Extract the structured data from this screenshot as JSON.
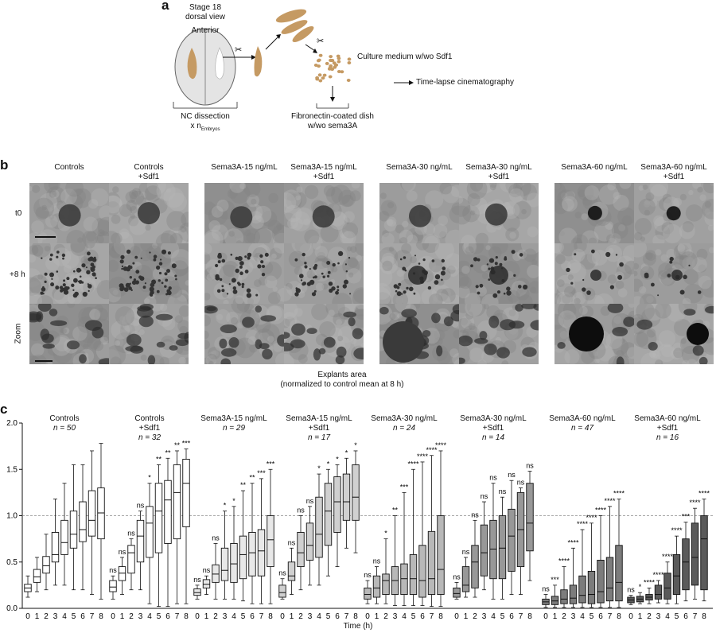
{
  "panel_a": {
    "label": "a",
    "stage": "Stage 18",
    "view": "dorsal view",
    "anterior": "Anterior",
    "culture": "Culture medium w/wo Sdf1",
    "timelapse": "Time-lapse cinematography",
    "nc1": "NC dissection",
    "nc2": "x n",
    "nc_sub": "Embryos",
    "fib1": "Fibronectin-coated dish",
    "fib2": "w/wo sema3A"
  },
  "panel_b": {
    "label": "b",
    "columns": [
      {
        "l1": "Controls",
        "l2": ""
      },
      {
        "l1": "Controls",
        "l2": "+Sdf1"
      },
      {
        "l1": "Sema3A-15 ng/mL",
        "l2": ""
      },
      {
        "l1": "Sema3A-15 ng/mL",
        "l2": "+Sdf1"
      },
      {
        "l1": "Sema3A-30 ng/mL",
        "l2": ""
      },
      {
        "l1": "Sema3A-30 ng/mL",
        "l2": "+Sdf1"
      },
      {
        "l1": "Sema3A-60 ng/mL",
        "l2": ""
      },
      {
        "l1": "Sema3A-60 ng/mL",
        "l2": "+Sdf1"
      }
    ],
    "rows": [
      "t0",
      "+8 h",
      "Zoom"
    ],
    "caption1": "Explants area",
    "caption2": "(normalized to control mean at 8 h)"
  },
  "panel_c": {
    "label": "c",
    "xlabel": "Time (h)",
    "groups": [
      {
        "l1": "Controls",
        "l2": "",
        "n": "n = 50"
      },
      {
        "l1": "Controls",
        "l2": "+Sdf1",
        "n": "n = 32"
      },
      {
        "l1": "Sema3A-15 ng/mL",
        "l2": "",
        "n": "n = 29"
      },
      {
        "l1": "Sema3A-15 ng/mL",
        "l2": "+Sdf1",
        "n": "n = 17"
      },
      {
        "l1": "Sema3A-30 ng/mL",
        "l2": "",
        "n": "n = 24"
      },
      {
        "l1": "Sema3A-30 ng/mL",
        "l2": "+Sdf1",
        "n": "n = 14"
      },
      {
        "l1": "Sema3A-60 ng/mL",
        "l2": "",
        "n": "n = 47"
      },
      {
        "l1": "Sema3A-60 ng/mL",
        "l2": "+Sdf1",
        "n": "n = 16"
      }
    ]
  },
  "chart_data": {
    "type": "box",
    "xlabel": "Time (h)",
    "ylim": [
      0,
      2.0
    ],
    "yticks": [
      "0.0",
      "0.5",
      "1.0",
      "1.5",
      "2.0"
    ],
    "reference_line": 1.0,
    "categories": [
      "0",
      "1",
      "2",
      "3",
      "4",
      "5",
      "6",
      "7",
      "8"
    ],
    "series": [
      {
        "fill": "#ffffff",
        "q1": [
          0.18,
          0.28,
          0.38,
          0.5,
          0.58,
          0.65,
          0.72,
          0.78,
          0.75
        ],
        "median": [
          0.22,
          0.34,
          0.46,
          0.58,
          0.71,
          0.8,
          0.85,
          0.95,
          1.03
        ],
        "q3": [
          0.26,
          0.42,
          0.56,
          0.82,
          0.95,
          1.05,
          1.15,
          1.27,
          1.3
        ],
        "wlo": [
          0.12,
          0.18,
          0.2,
          0.25,
          0.25,
          0.2,
          0.2,
          0.15,
          0.1
        ],
        "whi": [
          0.35,
          0.55,
          0.8,
          1.18,
          1.35,
          1.55,
          1.55,
          1.7,
          1.78
        ],
        "sig": [
          "",
          "",
          "",
          "",
          "",
          "",
          "",
          "",
          ""
        ]
      },
      {
        "fill": "#ffffff",
        "q1": [
          0.18,
          0.3,
          0.38,
          0.5,
          0.55,
          0.6,
          0.7,
          0.75,
          0.88
        ],
        "median": [
          0.23,
          0.38,
          0.6,
          0.78,
          0.92,
          1.05,
          1.17,
          1.25,
          1.35
        ],
        "q3": [
          0.3,
          0.45,
          0.68,
          0.95,
          1.1,
          1.35,
          1.38,
          1.55,
          1.61
        ],
        "wlo": [
          0.1,
          0.15,
          0.2,
          0.2,
          0.05,
          0.02,
          0.02,
          0.05,
          0.05
        ],
        "whi": [
          0.35,
          0.55,
          0.75,
          1.05,
          1.35,
          1.55,
          1.62,
          1.7,
          1.72
        ],
        "sig": [
          "ns",
          "ns",
          "ns",
          "ns",
          "*",
          "**",
          "**",
          "**",
          "***"
        ]
      },
      {
        "fill": "#e8e8e8",
        "q1": [
          0.14,
          0.22,
          0.28,
          0.3,
          0.28,
          0.32,
          0.35,
          0.35,
          0.45
        ],
        "median": [
          0.17,
          0.26,
          0.37,
          0.41,
          0.48,
          0.58,
          0.6,
          0.62,
          0.74
        ],
        "q3": [
          0.21,
          0.31,
          0.47,
          0.65,
          0.7,
          0.78,
          0.82,
          0.85,
          1.0
        ],
        "wlo": [
          0.1,
          0.15,
          0.1,
          0.1,
          0.1,
          0.08,
          0.05,
          0.05,
          0.05
        ],
        "whi": [
          0.25,
          0.35,
          0.7,
          1.05,
          1.1,
          1.27,
          1.35,
          1.4,
          1.5
        ],
        "sig": [
          "ns",
          "ns",
          "ns",
          "*",
          "*",
          "**",
          "**",
          "***",
          "***"
        ]
      },
      {
        "fill": "#d0d0d0",
        "q1": [
          0.12,
          0.3,
          0.45,
          0.52,
          0.55,
          0.68,
          0.82,
          0.95,
          0.95
        ],
        "median": [
          0.17,
          0.35,
          0.6,
          0.68,
          0.8,
          1.05,
          1.15,
          1.15,
          1.2
        ],
        "q3": [
          0.25,
          0.5,
          0.82,
          0.92,
          1.2,
          1.35,
          1.42,
          1.45,
          1.55
        ],
        "wlo": [
          0.1,
          0.15,
          0.2,
          0.25,
          0.25,
          0.35,
          0.45,
          0.65,
          0.6
        ],
        "whi": [
          0.32,
          0.65,
          1.0,
          1.1,
          1.45,
          1.5,
          1.55,
          1.62,
          1.7
        ],
        "sig": [
          "ns",
          "ns",
          "ns",
          "ns",
          "*",
          "*",
          "*",
          "*",
          "*"
        ]
      },
      {
        "fill": "#b8b8b8",
        "q1": [
          0.1,
          0.12,
          0.15,
          0.15,
          0.15,
          0.15,
          0.12,
          0.15,
          0.15
        ],
        "median": [
          0.15,
          0.22,
          0.3,
          0.3,
          0.32,
          0.32,
          0.3,
          0.32,
          0.42
        ],
        "q3": [
          0.22,
          0.35,
          0.37,
          0.45,
          0.48,
          0.58,
          0.68,
          0.83,
          1.0
        ],
        "wlo": [
          0.05,
          0.05,
          0.05,
          0.03,
          0.03,
          0.03,
          0.03,
          0.02,
          0.02
        ],
        "whi": [
          0.3,
          0.45,
          0.75,
          1.0,
          1.25,
          1.5,
          1.58,
          1.65,
          1.7
        ],
        "sig": [
          "ns",
          "ns",
          "*",
          "**",
          "***",
          "****",
          "****",
          "****",
          "****"
        ]
      },
      {
        "fill": "#989898",
        "q1": [
          0.12,
          0.18,
          0.22,
          0.35,
          0.32,
          0.32,
          0.4,
          0.45,
          0.62
        ],
        "median": [
          0.16,
          0.25,
          0.5,
          0.6,
          0.64,
          0.65,
          0.78,
          0.85,
          0.92
        ],
        "q3": [
          0.22,
          0.45,
          0.68,
          0.9,
          0.95,
          1.0,
          1.07,
          1.25,
          1.35
        ],
        "wlo": [
          0.1,
          0.12,
          0.12,
          0.2,
          0.1,
          0.1,
          0.15,
          0.15,
          0.3
        ],
        "whi": [
          0.28,
          0.55,
          0.95,
          1.15,
          1.35,
          1.2,
          1.38,
          1.3,
          1.48
        ],
        "sig": [
          "ns",
          "ns",
          "ns",
          "ns",
          "ns",
          "ns",
          "ns",
          "ns",
          "ns"
        ]
      },
      {
        "fill": "#7c7c7c",
        "q1": [
          0.04,
          0.04,
          0.05,
          0.05,
          0.06,
          0.05,
          0.06,
          0.08,
          0.08
        ],
        "median": [
          0.07,
          0.08,
          0.1,
          0.11,
          0.14,
          0.15,
          0.18,
          0.22,
          0.28
        ],
        "q3": [
          0.1,
          0.13,
          0.2,
          0.25,
          0.35,
          0.4,
          0.52,
          0.55,
          0.68
        ],
        "wlo": [
          0.01,
          0.01,
          0.01,
          0.01,
          0.01,
          0.01,
          0.01,
          0.01,
          0.01
        ],
        "whi": [
          0.15,
          0.25,
          0.45,
          0.65,
          0.85,
          0.92,
          1.0,
          1.1,
          1.18
        ],
        "sig": [
          "ns",
          "***",
          "****",
          "****",
          "****",
          "****",
          "****",
          "****",
          "****"
        ]
      },
      {
        "fill": "#5a5a5a",
        "q1": [
          0.06,
          0.07,
          0.09,
          0.1,
          0.1,
          0.15,
          0.2,
          0.25,
          0.2
        ],
        "median": [
          0.09,
          0.1,
          0.12,
          0.15,
          0.22,
          0.35,
          0.5,
          0.55,
          0.75
        ],
        "q3": [
          0.12,
          0.13,
          0.15,
          0.25,
          0.38,
          0.58,
          0.75,
          0.92,
          1.0
        ],
        "wlo": [
          0.04,
          0.05,
          0.05,
          0.06,
          0.05,
          0.05,
          0.08,
          0.1,
          0.08
        ],
        "whi": [
          0.14,
          0.17,
          0.22,
          0.3,
          0.5,
          0.78,
          0.93,
          1.08,
          1.18
        ],
        "sig": [
          "ns",
          "*",
          "****",
          "****",
          "****",
          "****",
          "***",
          "****",
          "****"
        ]
      }
    ]
  }
}
